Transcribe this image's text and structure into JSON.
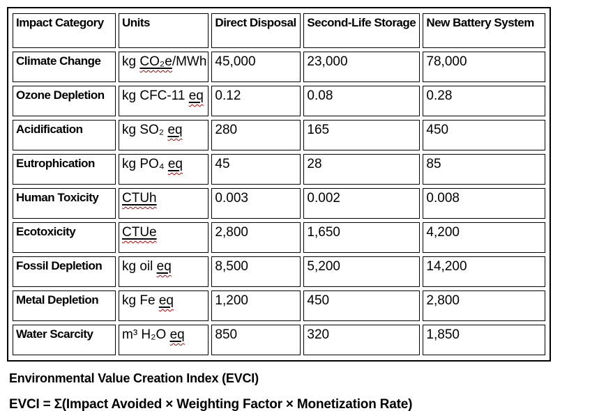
{
  "table": {
    "headers": {
      "impact_category": "Impact Category",
      "units": "Units",
      "direct_disposal": "Direct Disposal",
      "second_life_storage": "Second-Life Storage",
      "new_battery_system": "New Battery System"
    },
    "rows": [
      {
        "category": "Climate Change",
        "unit_pre": "kg ",
        "unit_mis": "CO₂e",
        "unit_post": "/MWh",
        "direct_disposal": "45,000",
        "second_life": "23,000",
        "new_battery": "78,000"
      },
      {
        "category": "Ozone Depletion",
        "unit_pre": "kg CFC-11 ",
        "unit_mis": "eq",
        "unit_post": "",
        "direct_disposal": "0.12",
        "second_life": "0.08",
        "new_battery": "0.28"
      },
      {
        "category": "Acidification",
        "unit_pre": "kg SO₂ ",
        "unit_mis": "eq",
        "unit_post": "",
        "direct_disposal": "280",
        "second_life": "165",
        "new_battery": "450"
      },
      {
        "category": "Eutrophication",
        "unit_pre": "kg PO₄ ",
        "unit_mis": "eq",
        "unit_post": "",
        "direct_disposal": "45",
        "second_life": "28",
        "new_battery": "85"
      },
      {
        "category": "Human Toxicity",
        "unit_pre": "",
        "unit_mis": "CTUh",
        "unit_post": "",
        "direct_disposal": "0.003",
        "second_life": "0.002",
        "new_battery": "0.008"
      },
      {
        "category": "Ecotoxicity",
        "unit_pre": "",
        "unit_mis": "CTUe",
        "unit_post": "",
        "direct_disposal": "2,800",
        "second_life": "1,650",
        "new_battery": "4,200"
      },
      {
        "category": "Fossil Depletion",
        "unit_pre": "kg oil ",
        "unit_mis": "eq",
        "unit_post": "",
        "direct_disposal": "8,500",
        "second_life": "5,200",
        "new_battery": "14,200"
      },
      {
        "category": "Metal Depletion",
        "unit_pre": "kg Fe ",
        "unit_mis": "eq",
        "unit_post": "",
        "direct_disposal": "1,200",
        "second_life": "450",
        "new_battery": "2,800"
      },
      {
        "category": "Water Scarcity",
        "unit_pre": "m³ H₂O ",
        "unit_mis": "eq",
        "unit_post": "",
        "direct_disposal": "850",
        "second_life": "320",
        "new_battery": "1,850"
      }
    ]
  },
  "footer": {
    "title": "Environmental Value Creation Index (EVCI)",
    "formula": "EVCI = Σ(Impact Avoided × Weighting Factor × Monetization Rate)"
  },
  "colors": {
    "text": "#000000",
    "border": "#000000",
    "background": "#ffffff",
    "spellcheck_squiggle": "#c00000"
  }
}
